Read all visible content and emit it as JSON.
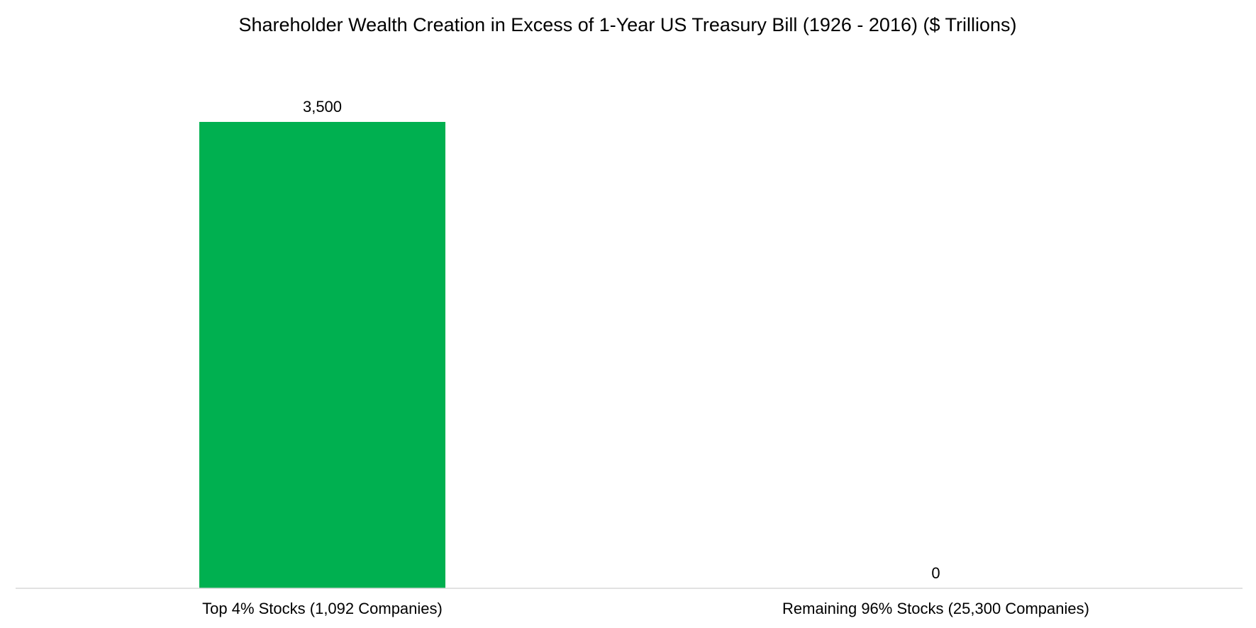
{
  "chart_data": {
    "type": "bar",
    "title": "Shareholder Wealth Creation in Excess of 1-Year US Treasury Bill (1926 - 2016) ($ Trillions)",
    "categories": [
      "Top 4% Stocks (1,092 Companies)",
      "Remaining 96% Stocks (25,300 Companies)"
    ],
    "values": [
      3500,
      0
    ],
    "data_labels": [
      "3,500",
      "0"
    ],
    "ylim": [
      0,
      3500
    ],
    "grid": false,
    "legend": "none",
    "colors": {
      "bar": "#00B050",
      "axis": "#D9D9D9",
      "text": "#000000"
    }
  }
}
